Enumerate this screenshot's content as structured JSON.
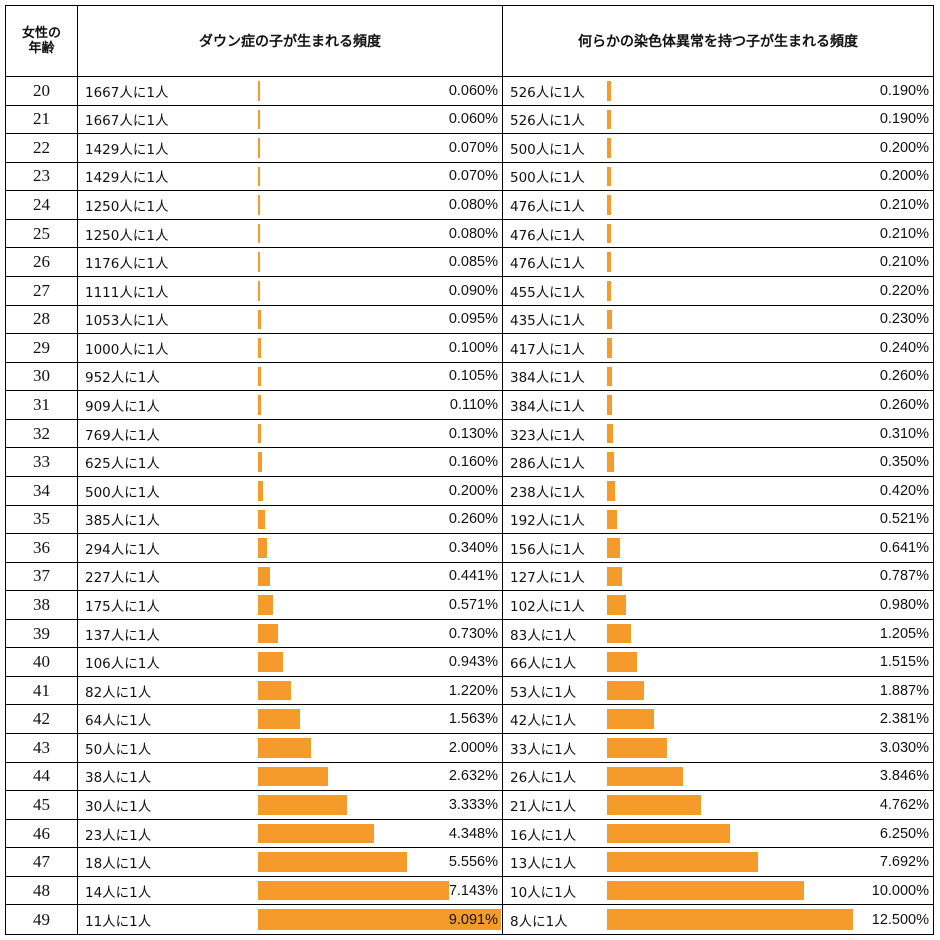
{
  "colors": {
    "bar": "#f59b2c",
    "border": "#000000"
  },
  "headers": {
    "age": "女性の\n年齢",
    "down": "ダウン症の子が生まれる頻度",
    "chromosome": "何らかの染色体異常を持つ子が生まれる頻度"
  },
  "chart_data": {
    "type": "table",
    "columns": [
      "女性の年齢",
      "ダウン症の子が生まれる頻度",
      "何らかの染色体異常を持つ子が生まれる頻度"
    ],
    "rows": [
      {
        "age": "20",
        "down_ratio": "1667人に1人",
        "down_pct": "0.060%",
        "down_value": 0.06,
        "chrom_ratio": "526人に1人",
        "chrom_pct": "0.190%",
        "chrom_value": 0.19
      },
      {
        "age": "21",
        "down_ratio": "1667人に1人",
        "down_pct": "0.060%",
        "down_value": 0.06,
        "chrom_ratio": "526人に1人",
        "chrom_pct": "0.190%",
        "chrom_value": 0.19
      },
      {
        "age": "22",
        "down_ratio": "1429人に1人",
        "down_pct": "0.070%",
        "down_value": 0.07,
        "chrom_ratio": "500人に1人",
        "chrom_pct": "0.200%",
        "chrom_value": 0.2
      },
      {
        "age": "23",
        "down_ratio": "1429人に1人",
        "down_pct": "0.070%",
        "down_value": 0.07,
        "chrom_ratio": "500人に1人",
        "chrom_pct": "0.200%",
        "chrom_value": 0.2
      },
      {
        "age": "24",
        "down_ratio": "1250人に1人",
        "down_pct": "0.080%",
        "down_value": 0.08,
        "chrom_ratio": "476人に1人",
        "chrom_pct": "0.210%",
        "chrom_value": 0.21
      },
      {
        "age": "25",
        "down_ratio": "1250人に1人",
        "down_pct": "0.080%",
        "down_value": 0.08,
        "chrom_ratio": "476人に1人",
        "chrom_pct": "0.210%",
        "chrom_value": 0.21
      },
      {
        "age": "26",
        "down_ratio": "1176人に1人",
        "down_pct": "0.085%",
        "down_value": 0.085,
        "chrom_ratio": "476人に1人",
        "chrom_pct": "0.210%",
        "chrom_value": 0.21
      },
      {
        "age": "27",
        "down_ratio": "1111人に1人",
        "down_pct": "0.090%",
        "down_value": 0.09,
        "chrom_ratio": "455人に1人",
        "chrom_pct": "0.220%",
        "chrom_value": 0.22
      },
      {
        "age": "28",
        "down_ratio": "1053人に1人",
        "down_pct": "0.095%",
        "down_value": 0.095,
        "chrom_ratio": "435人に1人",
        "chrom_pct": "0.230%",
        "chrom_value": 0.23
      },
      {
        "age": "29",
        "down_ratio": "1000人に1人",
        "down_pct": "0.100%",
        "down_value": 0.1,
        "chrom_ratio": "417人に1人",
        "chrom_pct": "0.240%",
        "chrom_value": 0.24
      },
      {
        "age": "30",
        "down_ratio": "952人に1人",
        "down_pct": "0.105%",
        "down_value": 0.105,
        "chrom_ratio": "384人に1人",
        "chrom_pct": "0.260%",
        "chrom_value": 0.26
      },
      {
        "age": "31",
        "down_ratio": "909人に1人",
        "down_pct": "0.110%",
        "down_value": 0.11,
        "chrom_ratio": "384人に1人",
        "chrom_pct": "0.260%",
        "chrom_value": 0.26
      },
      {
        "age": "32",
        "down_ratio": "769人に1人",
        "down_pct": "0.130%",
        "down_value": 0.13,
        "chrom_ratio": "323人に1人",
        "chrom_pct": "0.310%",
        "chrom_value": 0.31
      },
      {
        "age": "33",
        "down_ratio": "625人に1人",
        "down_pct": "0.160%",
        "down_value": 0.16,
        "chrom_ratio": "286人に1人",
        "chrom_pct": "0.350%",
        "chrom_value": 0.35
      },
      {
        "age": "34",
        "down_ratio": "500人に1人",
        "down_pct": "0.200%",
        "down_value": 0.2,
        "chrom_ratio": "238人に1人",
        "chrom_pct": "0.420%",
        "chrom_value": 0.42
      },
      {
        "age": "35",
        "down_ratio": "385人に1人",
        "down_pct": "0.260%",
        "down_value": 0.26,
        "chrom_ratio": "192人に1人",
        "chrom_pct": "0.521%",
        "chrom_value": 0.521
      },
      {
        "age": "36",
        "down_ratio": "294人に1人",
        "down_pct": "0.340%",
        "down_value": 0.34,
        "chrom_ratio": "156人に1人",
        "chrom_pct": "0.641%",
        "chrom_value": 0.641
      },
      {
        "age": "37",
        "down_ratio": "227人に1人",
        "down_pct": "0.441%",
        "down_value": 0.441,
        "chrom_ratio": "127人に1人",
        "chrom_pct": "0.787%",
        "chrom_value": 0.787
      },
      {
        "age": "38",
        "down_ratio": "175人に1人",
        "down_pct": "0.571%",
        "down_value": 0.571,
        "chrom_ratio": "102人に1人",
        "chrom_pct": "0.980%",
        "chrom_value": 0.98
      },
      {
        "age": "39",
        "down_ratio": "137人に1人",
        "down_pct": "0.730%",
        "down_value": 0.73,
        "chrom_ratio": "83人に1人",
        "chrom_pct": "1.205%",
        "chrom_value": 1.205
      },
      {
        "age": "40",
        "down_ratio": "106人に1人",
        "down_pct": "0.943%",
        "down_value": 0.943,
        "chrom_ratio": "66人に1人",
        "chrom_pct": "1.515%",
        "chrom_value": 1.515
      },
      {
        "age": "41",
        "down_ratio": "82人に1人",
        "down_pct": "1.220%",
        "down_value": 1.22,
        "chrom_ratio": "53人に1人",
        "chrom_pct": "1.887%",
        "chrom_value": 1.887
      },
      {
        "age": "42",
        "down_ratio": "64人に1人",
        "down_pct": "1.563%",
        "down_value": 1.563,
        "chrom_ratio": "42人に1人",
        "chrom_pct": "2.381%",
        "chrom_value": 2.381
      },
      {
        "age": "43",
        "down_ratio": "50人に1人",
        "down_pct": "2.000%",
        "down_value": 2.0,
        "chrom_ratio": "33人に1人",
        "chrom_pct": "3.030%",
        "chrom_value": 3.03
      },
      {
        "age": "44",
        "down_ratio": "38人に1人",
        "down_pct": "2.632%",
        "down_value": 2.632,
        "chrom_ratio": "26人に1人",
        "chrom_pct": "3.846%",
        "chrom_value": 3.846
      },
      {
        "age": "45",
        "down_ratio": "30人に1人",
        "down_pct": "3.333%",
        "down_value": 3.333,
        "chrom_ratio": "21人に1人",
        "chrom_pct": "4.762%",
        "chrom_value": 4.762
      },
      {
        "age": "46",
        "down_ratio": "23人に1人",
        "down_pct": "4.348%",
        "down_value": 4.348,
        "chrom_ratio": "16人に1人",
        "chrom_pct": "6.250%",
        "chrom_value": 6.25
      },
      {
        "age": "47",
        "down_ratio": "18人に1人",
        "down_pct": "5.556%",
        "down_value": 5.556,
        "chrom_ratio": "13人に1人",
        "chrom_pct": "7.692%",
        "chrom_value": 7.692
      },
      {
        "age": "48",
        "down_ratio": "14人に1人",
        "down_pct": "7.143%",
        "down_value": 7.143,
        "chrom_ratio": "10人に1人",
        "chrom_pct": "10.000%",
        "chrom_value": 10.0
      },
      {
        "age": "49",
        "down_ratio": "11人に1人",
        "down_pct": "9.091%",
        "down_value": 9.091,
        "chrom_ratio": "8人に1人",
        "chrom_pct": "12.500%",
        "chrom_value": 12.5
      }
    ]
  }
}
